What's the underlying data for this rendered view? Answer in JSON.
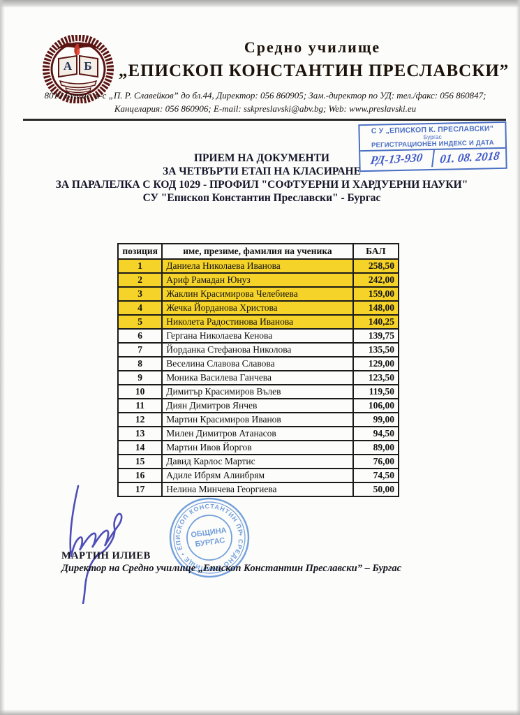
{
  "letterhead": {
    "school_type": "Средно училище",
    "school_name": "„ЕПИСКОП КОНСТАНТИН ПРЕСЛАВСКИ”",
    "logo_monogram": "АБ",
    "contact_line1": "8010 Бургас,   к-с „П. Р. Славейков” до бл.44,   Директор: 056 860905;   Зам.-директор по УД: тел./факс: 056 860847;",
    "contact_line2": "Канцелария: 056 860906;   E-mail: sskpreslavski@abv.bg;   Web: www.preslavski.eu"
  },
  "registration_stamp": {
    "line1": "С У „ЕПИСКОП К. ПРЕСЛАВСКИ”",
    "line2": "Бургас",
    "line3": "РЕГИСТРАЦИОНЕН ИНДЕКС И ДАТА",
    "index_value": "РД-13-930",
    "date_value": "01. 08. 2018"
  },
  "title": {
    "line1": "ПРИЕМ НА ДОКУМЕНТИ",
    "line2": "ЗА ЧЕТВЪРТИ ЕТАП НА КЛАСИРАНЕ",
    "line3": "ЗА ПАРАЛЕЛКА С КОД 1029 - ПРОФИЛ \"СОФТУЕРНИ И ХАРДУЕРНИ НАУКИ\"",
    "line4": "СУ \"Епископ Константин Преславски\" - Бургас"
  },
  "table": {
    "headers": [
      "позиция",
      "име, презиме, фамилия на ученика",
      "БАЛ"
    ],
    "rows": [
      {
        "pos": "1",
        "name": "Даниела Николаева Иванова",
        "score": "258,50",
        "highlighted": true
      },
      {
        "pos": "2",
        "name": "Ариф Рамадан Юнуз",
        "score": "242,00",
        "highlighted": true
      },
      {
        "pos": "3",
        "name": "Жаклин Красимирова Челебиева",
        "score": "159,00",
        "highlighted": true
      },
      {
        "pos": "4",
        "name": "Жечка Йорданова Христова",
        "score": "148,00",
        "highlighted": true
      },
      {
        "pos": "5",
        "name": "Николета Радостинова Иванова",
        "score": "140,25",
        "highlighted": true
      },
      {
        "pos": "6",
        "name": "Гергана Николаева Кенова",
        "score": "139,75",
        "highlighted": false
      },
      {
        "pos": "7",
        "name": "Йорданка Стефанова Николова",
        "score": "135,50",
        "highlighted": false
      },
      {
        "pos": "8",
        "name": "Веселина Славова Славова",
        "score": "129,00",
        "highlighted": false
      },
      {
        "pos": "9",
        "name": "Моника Василева Ганчева",
        "score": "123,50",
        "highlighted": false
      },
      {
        "pos": "10",
        "name": "Димитър Красимиров Вълев",
        "score": "119,50",
        "highlighted": false
      },
      {
        "pos": "11",
        "name": "Диян Димитров Янчев",
        "score": "106,00",
        "highlighted": false
      },
      {
        "pos": "12",
        "name": "Мартин Красимиров Иванов",
        "score": "99,00",
        "highlighted": false
      },
      {
        "pos": "13",
        "name": "Милен Димитров Атанасов",
        "score": "94,50",
        "highlighted": false
      },
      {
        "pos": "14",
        "name": "Мартин Ивов Йоргов",
        "score": "89,00",
        "highlighted": false
      },
      {
        "pos": "15",
        "name": "Давид Карлос Мартис",
        "score": "76,00",
        "highlighted": false
      },
      {
        "pos": "16",
        "name": "Адиле Ибрям Алиибрям",
        "score": "74,50",
        "highlighted": false
      },
      {
        "pos": "17",
        "name": "Нелина Минчева Георгиева",
        "score": "50,00",
        "highlighted": false
      }
    ]
  },
  "signature_block": {
    "name": "МАРТИН ИЛИЕВ",
    "position_line": "Директор на Средно училище „Епископ Константин Преславски” – Бургас"
  },
  "round_stamp": {
    "rim_text": "• СРЕДНО УЧИЛИЩЕ • ЕПИСКОП КОНСТАНТИН ПРЕСЛАВСКИ",
    "inner_line1": "ОБЩИНА",
    "inner_line2": "БУРГАС"
  },
  "colors": {
    "highlight_yellow": "#f5d328",
    "stamp_blue": "#4a6fc4",
    "round_stamp_blue": "#5b8fd6",
    "ink_blue": "#3b3bb0",
    "logo_maroon": "#5a1412"
  }
}
